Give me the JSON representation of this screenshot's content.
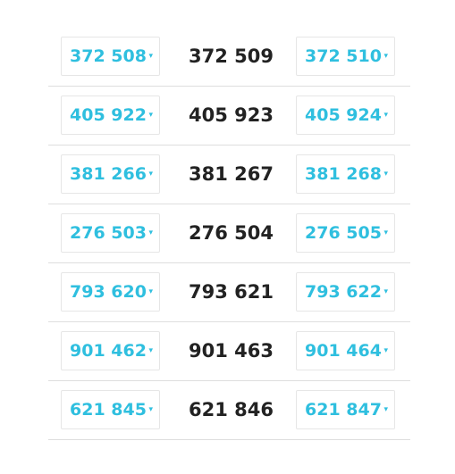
{
  "caret_icon": "▾",
  "rows": [
    {
      "prev": "372 508",
      "current": "372 509",
      "next": "372 510"
    },
    {
      "prev": "405 922",
      "current": "405 923",
      "next": "405 924"
    },
    {
      "prev": "381 266",
      "current": "381 267",
      "next": "381 268"
    },
    {
      "prev": "276 503",
      "current": "276 504",
      "next": "276 505"
    },
    {
      "prev": "793 620",
      "current": "793 621",
      "next": "793 622"
    },
    {
      "prev": "901 462",
      "current": "901 463",
      "next": "901 464"
    },
    {
      "prev": "621 845",
      "current": "621 846",
      "next": "621 847"
    }
  ]
}
